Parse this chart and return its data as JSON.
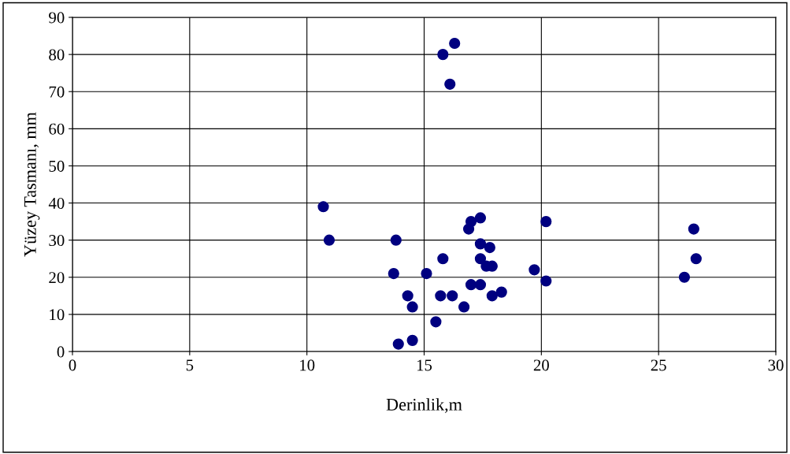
{
  "chart_data": {
    "type": "scatter",
    "xlabel": "Derinlik,m",
    "ylabel": "Yüzey Tasmanı, mm",
    "x": [
      10.7,
      10.95,
      13.8,
      13.7,
      14.3,
      14.5,
      14.5,
      13.9,
      15.5,
      15.1,
      15.8,
      15.7,
      16.2,
      16.7,
      15.8,
      16.3,
      16.1,
      17.0,
      16.9,
      17.4,
      17.4,
      17.8,
      17.4,
      17.65,
      17.9,
      17.0,
      17.4,
      17.9,
      18.3,
      19.7,
      20.2,
      20.2,
      26.1,
      26.5,
      26.6
    ],
    "series": [
      {
        "color": "#000080",
        "values": [
          39,
          30,
          30,
          21,
          15,
          12,
          3,
          2,
          8,
          21,
          25,
          15,
          15,
          12,
          80,
          83,
          72,
          35,
          33,
          36,
          29,
          28,
          25,
          23,
          23,
          18,
          18,
          15,
          16,
          22,
          35,
          19,
          20,
          33,
          25
        ]
      }
    ],
    "xlim": [
      0,
      30
    ],
    "xticks": [
      0,
      5,
      10,
      15,
      20,
      25,
      30
    ],
    "ylim": [
      0,
      90
    ],
    "yticks": [
      0,
      10,
      20,
      30,
      40,
      50,
      60,
      70,
      80,
      90
    ],
    "grid": true,
    "marker": "circle",
    "legend": false
  }
}
